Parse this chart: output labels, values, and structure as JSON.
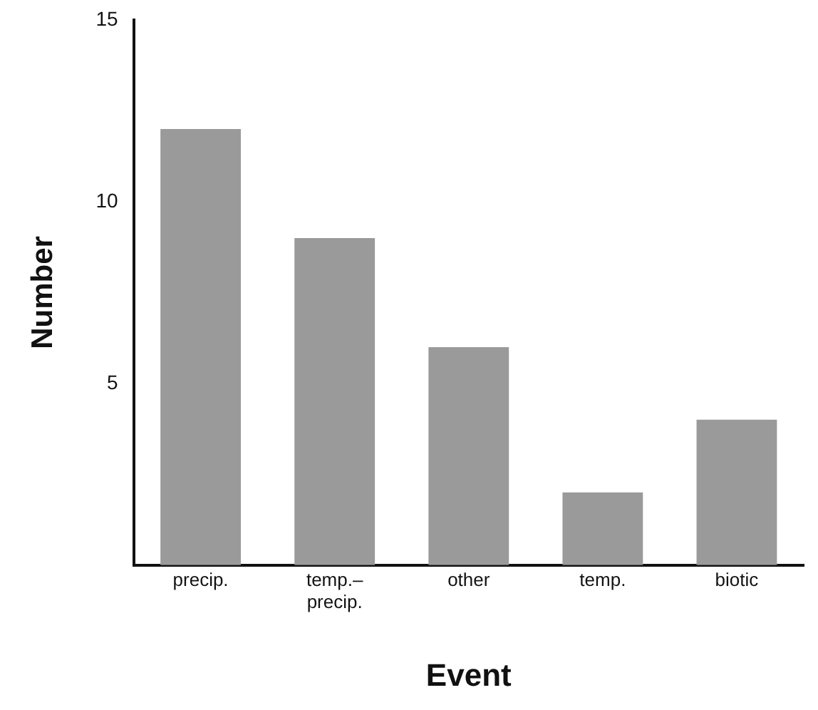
{
  "chart_data": {
    "type": "bar",
    "xlabel": "Event",
    "ylabel": "Number",
    "categories": [
      "precip.",
      "temp.–precip.",
      "other",
      "temp.",
      "biotic"
    ],
    "values": [
      12,
      9,
      6,
      2,
      4
    ],
    "color": "#9a9a9a",
    "ylim": [
      0,
      15
    ],
    "yticks": [
      5,
      10,
      15
    ],
    "grid": false,
    "legend": false
  }
}
